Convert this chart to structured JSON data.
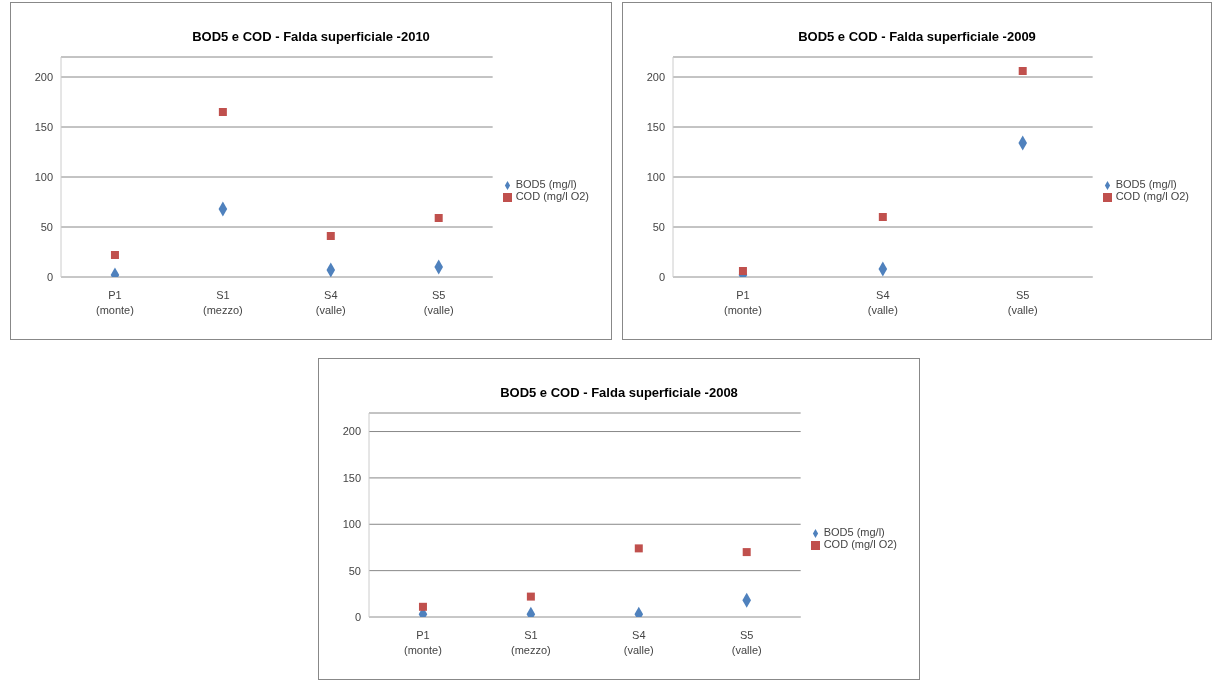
{
  "chart_data": [
    {
      "type": "scatter",
      "title": "BOD5 e COD - Falda superficiale -2010",
      "categories": [
        "P1 (monte)",
        "S1 (mezzo)",
        "S4 (valle)",
        "S5 (valle)"
      ],
      "series": [
        {
          "name": "BOD5 (mg/l)",
          "color": "#4f81bd",
          "marker": "diamond",
          "values": [
            2,
            68,
            7,
            10
          ]
        },
        {
          "name": "COD (mg/l O2)",
          "color": "#c0504d",
          "marker": "square",
          "values": [
            22,
            165,
            41,
            59
          ]
        }
      ],
      "ylim": [
        0,
        220
      ],
      "yticks": [
        0,
        50,
        100,
        150,
        200
      ],
      "grid": "y",
      "legend": "right"
    },
    {
      "type": "scatter",
      "title": "BOD5 e COD - Falda superficiale -2009",
      "categories": [
        "P1 (monte)",
        "S4 (valle)",
        "S5 (valle)"
      ],
      "series": [
        {
          "name": "BOD5 (mg/l)",
          "color": "#4f81bd",
          "marker": "diamond",
          "values": [
            2,
            8,
            134
          ]
        },
        {
          "name": "COD (mg/l O2)",
          "color": "#c0504d",
          "marker": "square",
          "values": [
            6,
            60,
            206
          ]
        }
      ],
      "ylim": [
        0,
        220
      ],
      "yticks": [
        0,
        50,
        100,
        150,
        200
      ],
      "grid": "y",
      "legend": "right"
    },
    {
      "type": "scatter",
      "title": "BOD5 e COD - Falda superficiale -2008",
      "categories": [
        "P1 (monte)",
        "S1 (mezzo)",
        "S4 (valle)",
        "S5 (valle)"
      ],
      "series": [
        {
          "name": "BOD5 (mg/l)",
          "color": "#4f81bd",
          "marker": "diamond",
          "values": [
            3,
            3,
            3,
            18
          ]
        },
        {
          "name": "COD (mg/l O2)",
          "color": "#c0504d",
          "marker": "square",
          "values": [
            11,
            22,
            74,
            70
          ]
        }
      ],
      "ylim": [
        0,
        220
      ],
      "yticks": [
        0,
        50,
        100,
        150,
        200
      ],
      "grid": "y",
      "legend": "right"
    }
  ]
}
